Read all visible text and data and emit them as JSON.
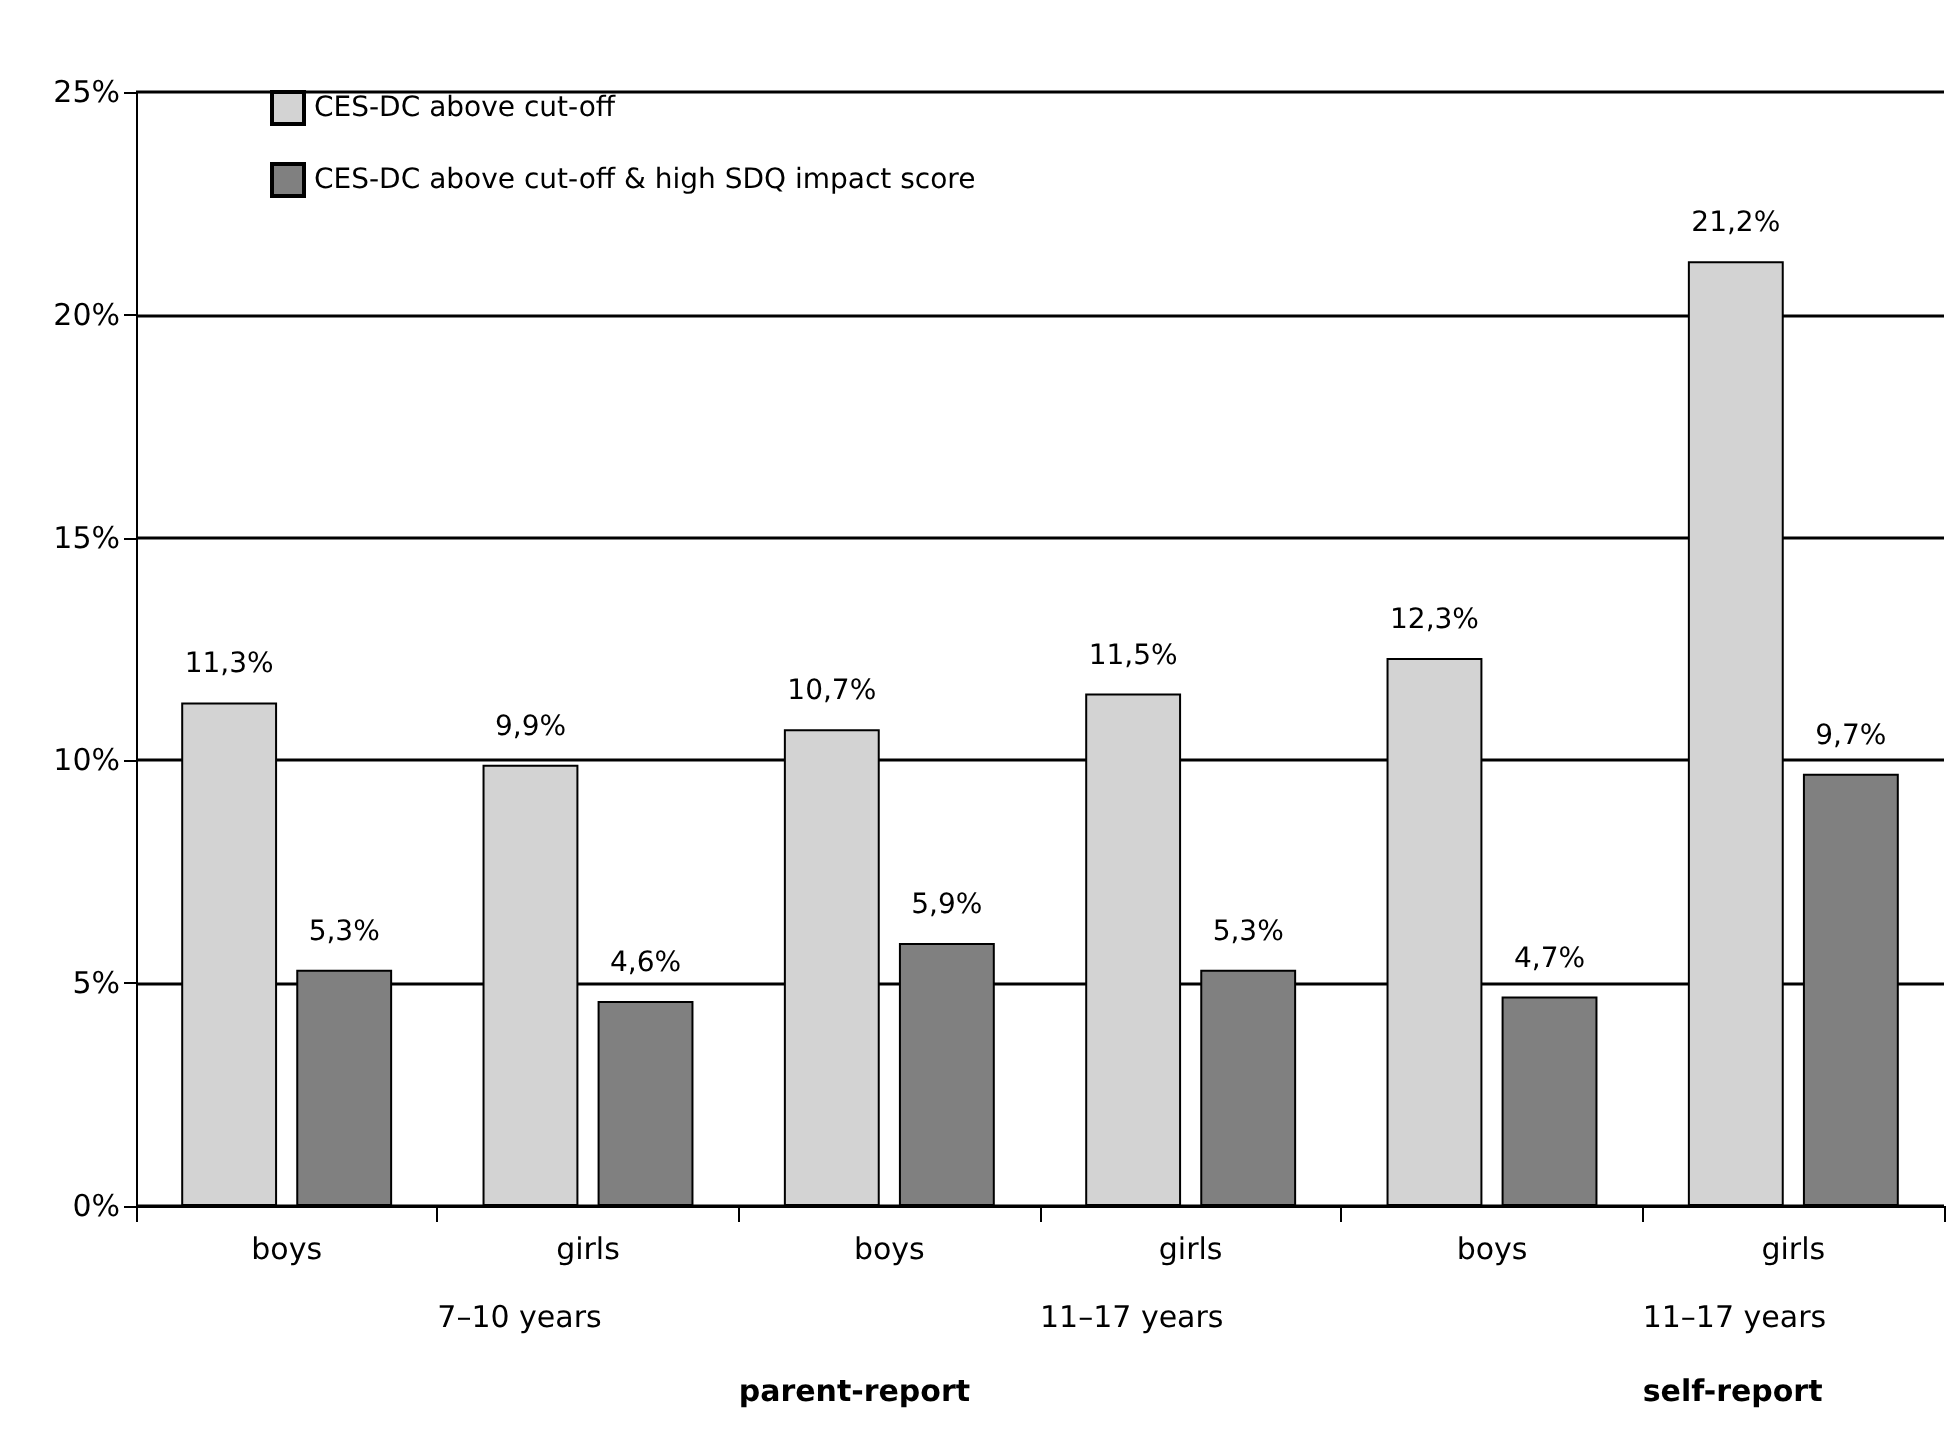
{
  "chart_data": {
    "type": "bar",
    "categories": [
      "boys",
      "girls",
      "boys",
      "girls",
      "boys",
      "girls"
    ],
    "series": [
      {
        "name": "CES-DC above cut-off",
        "color": "#d3d3d3",
        "values": [
          11.3,
          9.9,
          10.7,
          11.5,
          12.3,
          21.2
        ],
        "value_labels": [
          "11,3%",
          "9,9%",
          "10,7%",
          "11,5%",
          "12,3%",
          "21,2%"
        ]
      },
      {
        "name": "CES-DC above cut-off & high SDQ impact score",
        "color": "#808080",
        "values": [
          5.3,
          4.6,
          5.9,
          5.3,
          4.7,
          9.7
        ],
        "value_labels": [
          "5,3%",
          "4,6%",
          "5,9%",
          "5,3%",
          "4,7%",
          "9,7%"
        ]
      }
    ],
    "ylim": [
      0,
      25
    ],
    "yticks": [
      {
        "value": 0,
        "label": "0%"
      },
      {
        "value": 5,
        "label": "5%"
      },
      {
        "value": 10,
        "label": "10%"
      },
      {
        "value": 15,
        "label": "15%"
      },
      {
        "value": 20,
        "label": "20%"
      },
      {
        "value": 25,
        "label": "25%"
      }
    ],
    "grid": "y",
    "legend": "top left",
    "annotations": [
      "7–10 years",
      "11–17 years",
      "11–17 years",
      "parent-report",
      "self-report"
    ]
  }
}
